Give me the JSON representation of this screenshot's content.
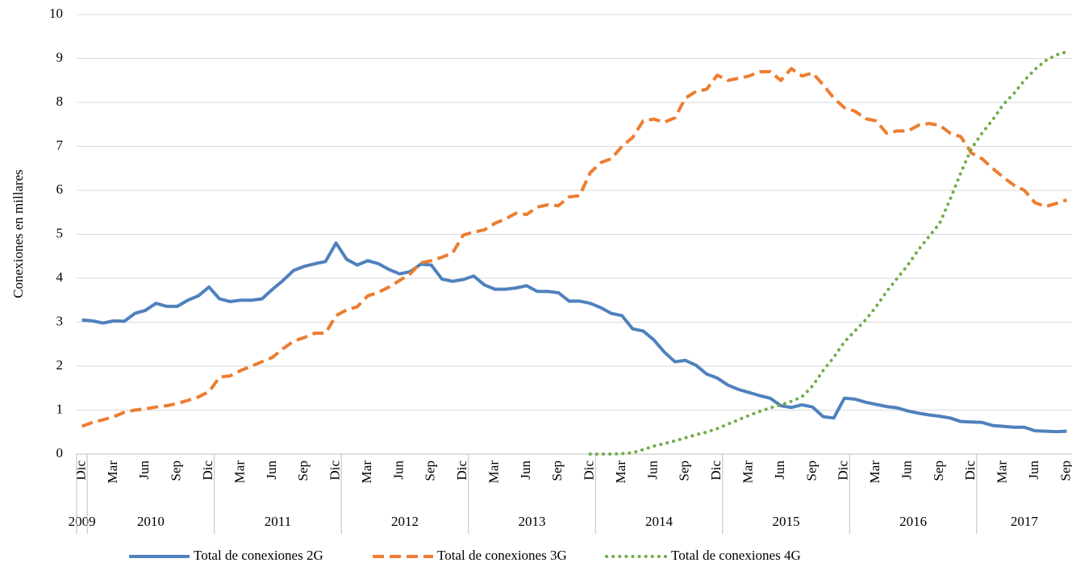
{
  "chart_data": {
    "type": "line",
    "y_label": "Conexiones en millares",
    "categories": [
      "Dic",
      null,
      null,
      "Mar",
      null,
      null,
      "Jun",
      null,
      null,
      "Sep",
      null,
      null,
      "Dic",
      null,
      null,
      "Mar",
      null,
      null,
      "Jun",
      null,
      null,
      "Sep",
      null,
      null,
      "Dic",
      null,
      null,
      "Mar",
      null,
      null,
      "Jun",
      null,
      null,
      "Sep",
      null,
      null,
      "Dic",
      null,
      null,
      "Mar",
      null,
      null,
      "Jun",
      null,
      null,
      "Sep",
      null,
      null,
      "Dic",
      null,
      null,
      "Mar",
      null,
      null,
      "Jun",
      null,
      null,
      "Sep",
      null,
      null,
      "Dic",
      null,
      null,
      "Mar",
      null,
      null,
      "Jun",
      null,
      null,
      "Sep",
      null,
      null,
      "Dic",
      null,
      null,
      "Mar",
      null,
      null,
      "Jun",
      null,
      null,
      "Sep",
      null,
      null,
      "Dic",
      null,
      null,
      "Mar",
      null,
      null,
      "Jun",
      null,
      null,
      "Sep"
    ],
    "years": [
      "2009",
      "2010",
      "2011",
      "2012",
      "2013",
      "2014",
      "2015",
      "2016",
      "2017"
    ],
    "ylim": [
      0,
      10
    ],
    "yticks": [
      0,
      1,
      2,
      3,
      4,
      5,
      6,
      7,
      8,
      9,
      10
    ],
    "grid": true,
    "legend": "bottom",
    "series": [
      {
        "name": "Total de conexiones 2G",
        "color": "#4f81bd",
        "style": "solid",
        "values": [
          3.05,
          3.03,
          2.98,
          3.03,
          3.02,
          3.2,
          3.27,
          3.43,
          3.36,
          3.36,
          3.5,
          3.6,
          3.8,
          3.53,
          3.47,
          3.5,
          3.5,
          3.53,
          3.75,
          3.95,
          4.18,
          4.27,
          4.33,
          4.38,
          4.8,
          4.43,
          4.3,
          4.4,
          4.33,
          4.2,
          4.1,
          4.15,
          4.32,
          4.3,
          3.98,
          3.93,
          3.97,
          4.05,
          3.85,
          3.75,
          3.75,
          3.78,
          3.83,
          3.7,
          3.7,
          3.67,
          3.48,
          3.48,
          3.43,
          3.33,
          3.2,
          3.15,
          2.85,
          2.8,
          2.6,
          2.32,
          2.1,
          2.13,
          2.02,
          1.82,
          1.73,
          1.57,
          1.47,
          1.4,
          1.33,
          1.27,
          1.1,
          1.06,
          1.12,
          1.07,
          0.85,
          0.82,
          1.27,
          1.25,
          1.18,
          1.13,
          1.08,
          1.05,
          0.98,
          0.93,
          0.89,
          0.86,
          0.82,
          0.74,
          0.73,
          0.72,
          0.65,
          0.63,
          0.61,
          0.61,
          0.53,
          0.52,
          0.51,
          0.52
        ]
      },
      {
        "name": "Total de conexiones 3G",
        "color": "#ed7d31",
        "style": "dashed",
        "values": [
          0.63,
          0.72,
          0.78,
          0.85,
          0.95,
          1.0,
          1.03,
          1.07,
          1.1,
          1.15,
          1.22,
          1.3,
          1.42,
          1.75,
          1.78,
          1.9,
          2.0,
          2.1,
          2.2,
          2.4,
          2.57,
          2.65,
          2.75,
          2.75,
          3.15,
          3.28,
          3.35,
          3.6,
          3.68,
          3.8,
          3.95,
          4.1,
          4.35,
          4.4,
          4.48,
          4.57,
          4.98,
          5.05,
          5.1,
          5.25,
          5.35,
          5.48,
          5.45,
          5.62,
          5.67,
          5.65,
          5.85,
          5.88,
          6.4,
          6.63,
          6.72,
          7.0,
          7.2,
          7.58,
          7.62,
          7.55,
          7.65,
          8.1,
          8.25,
          8.3,
          8.62,
          8.5,
          8.55,
          8.6,
          8.7,
          8.7,
          8.5,
          8.77,
          8.6,
          8.67,
          8.4,
          8.1,
          7.88,
          7.8,
          7.63,
          7.58,
          7.3,
          7.35,
          7.35,
          7.48,
          7.52,
          7.48,
          7.3,
          7.22,
          6.85,
          6.72,
          6.5,
          6.3,
          6.12,
          6.0,
          5.72,
          5.63,
          5.7,
          5.78
        ]
      },
      {
        "name": "Total de conexiones 4G",
        "color": "#70ad47",
        "style": "dotted",
        "values": [
          null,
          null,
          null,
          null,
          null,
          null,
          null,
          null,
          null,
          null,
          null,
          null,
          null,
          null,
          null,
          null,
          null,
          null,
          null,
          null,
          null,
          null,
          null,
          null,
          null,
          null,
          null,
          null,
          null,
          null,
          null,
          null,
          null,
          null,
          null,
          null,
          null,
          null,
          null,
          null,
          null,
          null,
          null,
          null,
          null,
          null,
          null,
          null,
          0,
          0,
          0,
          0.01,
          0.03,
          0.1,
          0.18,
          0.24,
          0.3,
          0.37,
          0.44,
          0.5,
          0.58,
          0.68,
          0.78,
          0.88,
          0.97,
          1.05,
          1.12,
          1.2,
          1.3,
          1.55,
          1.9,
          2.2,
          2.55,
          2.8,
          3.05,
          3.35,
          3.7,
          4.0,
          4.3,
          4.65,
          4.95,
          5.25,
          5.8,
          6.4,
          6.95,
          7.3,
          7.6,
          7.95,
          8.2,
          8.5,
          8.75,
          8.95,
          9.08,
          9.15
        ]
      }
    ]
  }
}
